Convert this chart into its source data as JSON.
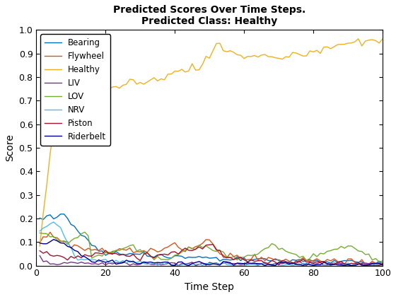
{
  "title": "Predicted Scores Over Time Steps.\nPredicted Class: Healthy",
  "xlabel": "Time Step",
  "ylabel": "Score",
  "xlim": [
    0,
    100
  ],
  "ylim": [
    0,
    1
  ],
  "series": {
    "Bearing": {
      "color": "#0072BD",
      "linewidth": 1.0
    },
    "Flywheel": {
      "color": "#D95319",
      "linewidth": 1.0
    },
    "Healthy": {
      "color": "#EDB120",
      "linewidth": 1.0
    },
    "LIV": {
      "color": "#7E2F8E",
      "linewidth": 1.0
    },
    "LOV": {
      "color": "#77AC30",
      "linewidth": 1.0
    },
    "NRV": {
      "color": "#4DBEEE",
      "linewidth": 1.0
    },
    "Piston": {
      "color": "#A2142F",
      "linewidth": 1.0
    },
    "Riderbelt": {
      "color": "#00008B",
      "linewidth": 1.0
    }
  },
  "xticks": [
    0,
    20,
    40,
    60,
    80,
    100
  ],
  "yticks": [
    0,
    0.1,
    0.2,
    0.3,
    0.4,
    0.5,
    0.6,
    0.7,
    0.8,
    0.9,
    1.0
  ],
  "legend_loc": "upper left",
  "title_fontsize": 10,
  "axis_fontsize": 10,
  "legend_fontsize": 8.5,
  "tick_labelsize": 9,
  "figsize": [
    5.6,
    4.2
  ],
  "dpi": 100
}
